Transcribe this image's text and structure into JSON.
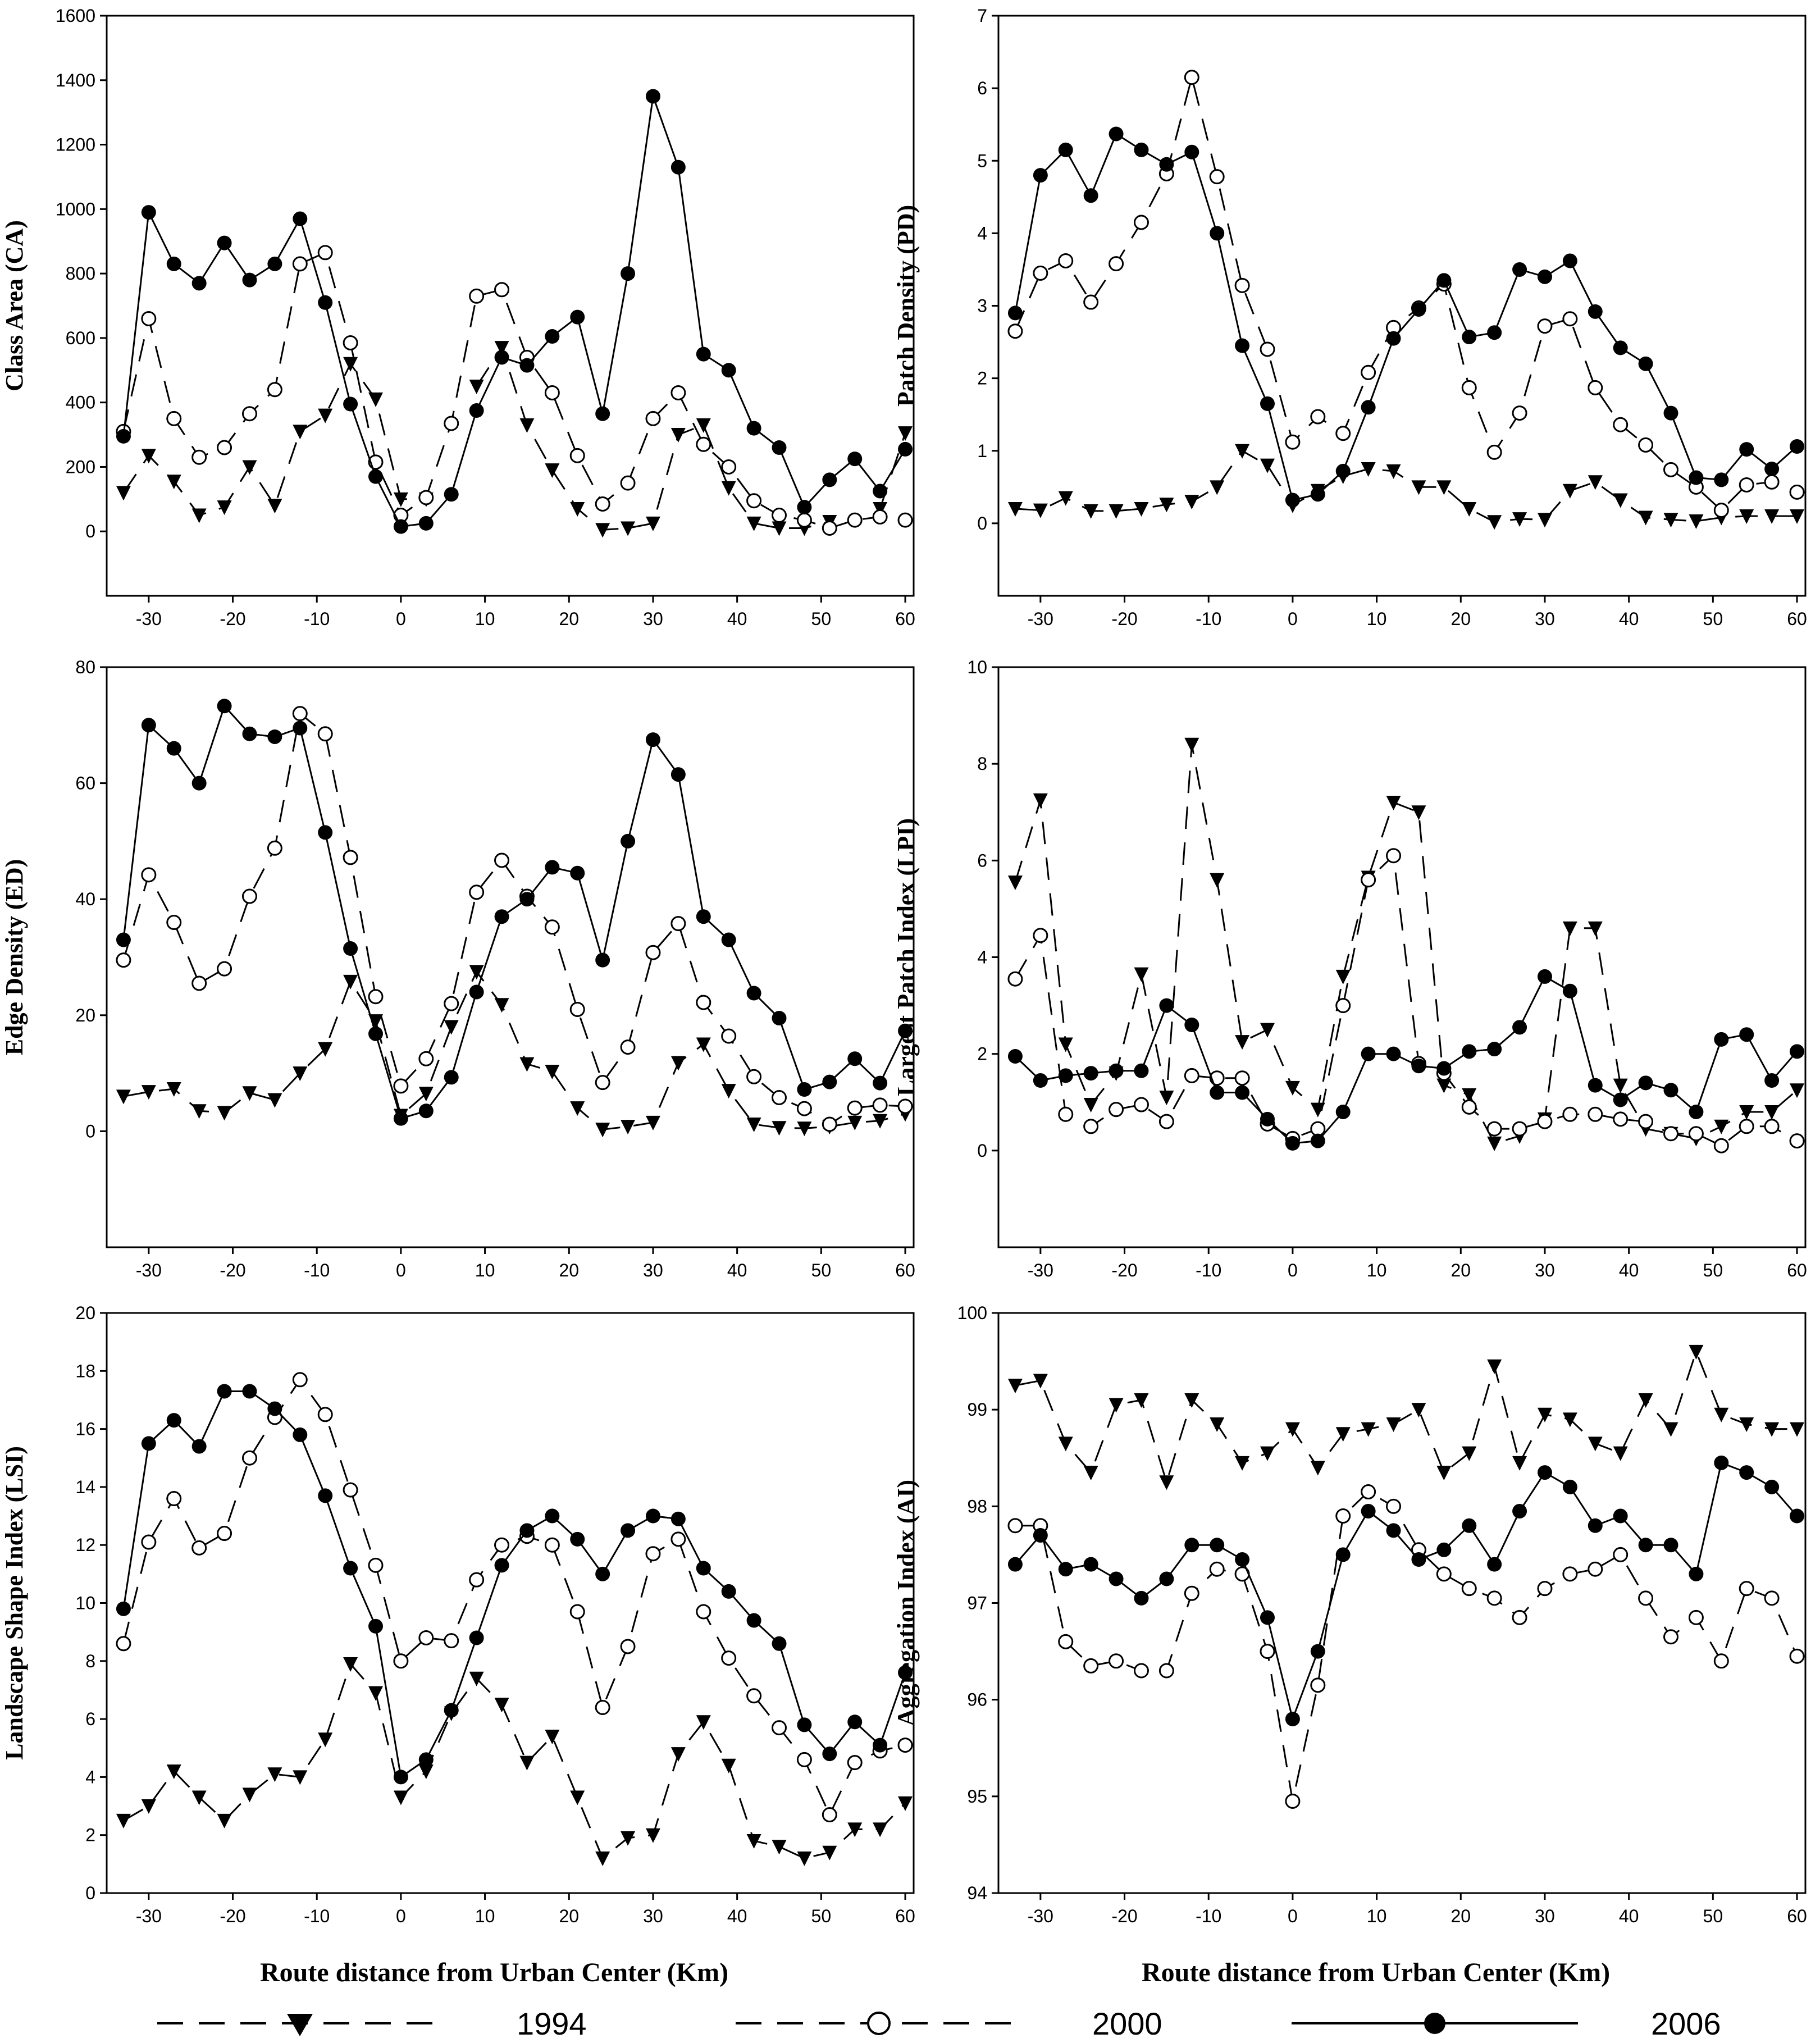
{
  "figure": {
    "x_axis_label": "Route distance from Urban Center (Km)",
    "legend": [
      {
        "key": "y1994",
        "label": "1994",
        "marker": "triangle-down",
        "line": "dashed"
      },
      {
        "key": "y2000",
        "label": "2000",
        "marker": "circle-open",
        "line": "dashed"
      },
      {
        "key": "y2006",
        "label": "2006",
        "marker": "circle-filled",
        "line": "solid"
      }
    ]
  },
  "chart_data": [
    {
      "type": "line",
      "ylabel": "Class Area  (CA)",
      "xlabel": "Route distance from Urban Center (Km)",
      "xlim": [
        -35,
        61
      ],
      "ylim": [
        -200,
        1600
      ],
      "xticks": [
        -30,
        -20,
        -10,
        0,
        10,
        20,
        30,
        40,
        50,
        60
      ],
      "yticks": [
        0,
        200,
        400,
        600,
        800,
        1000,
        1200,
        1400,
        1600
      ],
      "x": [
        -33,
        -30,
        -27,
        -24,
        -21,
        -18,
        -15,
        -12,
        -9,
        -6,
        -3,
        0,
        3,
        6,
        9,
        12,
        15,
        18,
        21,
        24,
        27,
        30,
        33,
        36,
        39,
        42,
        45,
        48,
        51,
        54,
        57,
        60
      ],
      "series": [
        {
          "name": "1994",
          "values": [
            120,
            235,
            155,
            50,
            75,
            200,
            80,
            310,
            360,
            520,
            410,
            100,
            100,
            null,
            450,
            570,
            330,
            190,
            70,
            5,
            10,
            25,
            300,
            330,
            135,
            25,
            10,
            10,
            30,
            null,
            70,
            305
          ]
        },
        {
          "name": "2000",
          "values": [
            310,
            660,
            350,
            230,
            260,
            365,
            440,
            830,
            865,
            585,
            215,
            50,
            105,
            335,
            730,
            750,
            540,
            430,
            235,
            85,
            150,
            350,
            430,
            270,
            200,
            95,
            50,
            35,
            10,
            35,
            45,
            35
          ]
        },
        {
          "name": "2006",
          "values": [
            295,
            990,
            830,
            770,
            895,
            780,
            830,
            970,
            710,
            395,
            170,
            15,
            25,
            115,
            375,
            540,
            515,
            605,
            665,
            365,
            800,
            1350,
            1130,
            550,
            500,
            320,
            260,
            75,
            160,
            225,
            125,
            255
          ]
        }
      ]
    },
    {
      "type": "line",
      "ylabel": "Patch Density  (PD)",
      "xlabel": "Route distance from Urban Center (Km)",
      "xlim": [
        -35,
        61
      ],
      "ylim": [
        -1,
        7
      ],
      "xticks": [
        -30,
        -20,
        -10,
        0,
        10,
        20,
        30,
        40,
        50,
        60
      ],
      "yticks": [
        0,
        1,
        2,
        3,
        4,
        5,
        6,
        7
      ],
      "x": [
        -33,
        -30,
        -27,
        -24,
        -21,
        -18,
        -15,
        -12,
        -9,
        -6,
        -3,
        0,
        3,
        6,
        9,
        12,
        15,
        18,
        21,
        24,
        27,
        30,
        33,
        36,
        39,
        42,
        45,
        48,
        51,
        54,
        57,
        60
      ],
      "series": [
        {
          "name": "1994",
          "values": [
            0.2,
            0.18,
            0.35,
            0.17,
            0.17,
            0.2,
            0.26,
            0.3,
            0.5,
            1.0,
            0.8,
            0.25,
            0.45,
            0.65,
            0.75,
            0.72,
            0.5,
            0.5,
            0.2,
            0.02,
            0.06,
            0.05,
            0.45,
            0.57,
            0.32,
            0.08,
            0.05,
            0.03,
            0.08,
            0.1,
            0.1,
            0.1
          ]
        },
        {
          "name": "2000",
          "values": [
            2.65,
            3.45,
            3.62,
            3.05,
            3.58,
            4.15,
            4.82,
            6.15,
            4.78,
            3.28,
            2.4,
            1.12,
            1.47,
            1.24,
            2.08,
            2.7,
            2.97,
            3.3,
            1.87,
            0.98,
            1.52,
            2.72,
            2.82,
            1.87,
            1.36,
            1.08,
            0.74,
            0.5,
            0.18,
            0.53,
            0.57,
            0.43
          ]
        },
        {
          "name": "2006",
          "values": [
            2.9,
            4.8,
            5.15,
            4.52,
            5.37,
            5.15,
            4.95,
            5.12,
            4.0,
            2.45,
            1.65,
            0.32,
            0.4,
            0.72,
            1.6,
            2.55,
            2.95,
            3.35,
            2.57,
            2.63,
            3.5,
            3.4,
            3.62,
            2.92,
            2.42,
            2.2,
            1.52,
            0.63,
            0.6,
            1.02,
            0.75,
            1.06
          ]
        }
      ]
    },
    {
      "type": "line",
      "ylabel": "Edge Density (ED)",
      "xlabel": "Route distance from Urban Center (Km)",
      "xlim": [
        -35,
        61
      ],
      "ylim": [
        -20,
        80
      ],
      "xticks": [
        -30,
        -20,
        -10,
        0,
        10,
        20,
        30,
        40,
        50,
        60
      ],
      "yticks": [
        0,
        20,
        40,
        60,
        80
      ],
      "x": [
        -33,
        -30,
        -27,
        -24,
        -21,
        -18,
        -15,
        -12,
        -9,
        -6,
        -3,
        0,
        3,
        6,
        9,
        12,
        15,
        18,
        21,
        24,
        27,
        30,
        33,
        36,
        39,
        42,
        45,
        48,
        51,
        54,
        57,
        60
      ],
      "series": [
        {
          "name": "1994",
          "values": [
            6.0,
            6.8,
            7.3,
            3.5,
            3.2,
            6.6,
            5.4,
            10.0,
            14.2,
            25.8,
            19.0,
            2.7,
            6.5,
            18.0,
            27.5,
            21.8,
            11.6,
            10.3,
            4.0,
            0.3,
            0.8,
            1.5,
            11.8,
            15.0,
            7.0,
            1.2,
            0.6,
            0.5,
            0.8,
            1.5,
            1.8,
            3.0
          ]
        },
        {
          "name": "2000",
          "values": [
            29.5,
            44.2,
            36.0,
            25.5,
            28.0,
            40.5,
            48.8,
            72.0,
            68.5,
            47.2,
            23.2,
            7.8,
            12.5,
            22.0,
            41.2,
            46.7,
            40.5,
            35.2,
            21.0,
            8.4,
            14.5,
            30.8,
            35.8,
            22.2,
            16.4,
            9.4,
            5.8,
            3.9,
            1.2,
            4.0,
            4.5,
            4.3
          ]
        },
        {
          "name": "2006",
          "values": [
            33.0,
            70.0,
            66.0,
            60.0,
            73.3,
            68.5,
            68.0,
            69.5,
            51.5,
            31.5,
            16.8,
            2.2,
            3.5,
            9.3,
            24.0,
            37.0,
            40.0,
            45.5,
            44.5,
            29.5,
            50.0,
            67.5,
            61.5,
            37.0,
            33.0,
            23.8,
            19.5,
            7.2,
            8.5,
            12.5,
            8.3,
            17.3
          ]
        }
      ]
    },
    {
      "type": "line",
      "ylabel": "Largest Patch Index  (LPI)",
      "xlabel": "Route distance from Urban Center (Km)",
      "xlim": [
        -35,
        61
      ],
      "ylim": [
        -2,
        10
      ],
      "xticks": [
        -30,
        -20,
        -10,
        0,
        10,
        20,
        30,
        40,
        50,
        60
      ],
      "yticks": [
        0,
        2,
        4,
        6,
        8,
        10
      ],
      "x": [
        -33,
        -30,
        -27,
        -24,
        -21,
        -18,
        -15,
        -12,
        -9,
        -6,
        -3,
        0,
        3,
        6,
        9,
        12,
        15,
        18,
        21,
        24,
        27,
        30,
        33,
        36,
        39,
        42,
        45,
        48,
        51,
        54,
        57,
        60
      ],
      "series": [
        {
          "name": "1994",
          "values": [
            5.55,
            7.25,
            2.2,
            0.95,
            1.6,
            3.65,
            1.1,
            8.4,
            5.6,
            2.25,
            2.5,
            1.3,
            0.85,
            3.6,
            5.65,
            7.2,
            7.0,
            1.35,
            1.15,
            0.15,
            0.3,
            0.65,
            4.6,
            4.6,
            1.35,
            0.45,
            0.35,
            0.25,
            0.5,
            0.8,
            0.8,
            1.25
          ]
        },
        {
          "name": "2000",
          "values": [
            3.55,
            4.45,
            0.75,
            0.5,
            0.85,
            0.95,
            0.6,
            1.55,
            1.5,
            1.5,
            0.55,
            0.25,
            0.45,
            3.0,
            5.6,
            6.1,
            1.8,
            1.6,
            0.9,
            0.45,
            0.45,
            0.6,
            0.75,
            0.75,
            0.65,
            0.6,
            0.35,
            0.35,
            0.1,
            0.5,
            0.5,
            0.2
          ]
        },
        {
          "name": "2006",
          "values": [
            1.95,
            1.45,
            1.55,
            1.6,
            1.65,
            1.65,
            3.0,
            2.6,
            1.2,
            1.2,
            0.65,
            0.15,
            0.2,
            0.8,
            2.0,
            2.0,
            1.75,
            1.7,
            2.05,
            2.1,
            2.55,
            3.6,
            3.3,
            1.35,
            1.05,
            1.4,
            1.25,
            0.8,
            2.3,
            2.4,
            1.45,
            2.05
          ]
        }
      ]
    },
    {
      "type": "line",
      "ylabel": "Landscape Shape Index (LSI)",
      "xlabel": "Route distance from Urban Center (Km)",
      "xlim": [
        -35,
        61
      ],
      "ylim": [
        0,
        20
      ],
      "xticks": [
        -30,
        -20,
        -10,
        0,
        10,
        20,
        30,
        40,
        50,
        60
      ],
      "yticks": [
        0,
        2,
        4,
        6,
        8,
        10,
        12,
        14,
        16,
        18,
        20
      ],
      "x": [
        -33,
        -30,
        -27,
        -24,
        -21,
        -18,
        -15,
        -12,
        -9,
        -6,
        -3,
        0,
        3,
        6,
        9,
        12,
        15,
        18,
        21,
        24,
        27,
        30,
        33,
        36,
        39,
        42,
        45,
        48,
        51,
        54,
        57,
        60
      ],
      "series": [
        {
          "name": "1994",
          "values": [
            2.5,
            3.0,
            4.2,
            3.3,
            2.5,
            3.4,
            4.1,
            4.0,
            5.3,
            7.9,
            6.9,
            3.3,
            4.2,
            6.2,
            7.4,
            6.5,
            4.5,
            5.4,
            3.3,
            1.2,
            1.9,
            2.0,
            4.8,
            5.9,
            4.4,
            1.8,
            1.6,
            1.2,
            1.4,
            2.2,
            2.2,
            3.1
          ]
        },
        {
          "name": "2000",
          "values": [
            8.6,
            12.1,
            13.6,
            11.9,
            12.4,
            15.0,
            16.4,
            17.7,
            16.5,
            13.9,
            11.3,
            8.0,
            8.8,
            8.7,
            10.8,
            12.0,
            12.3,
            12.0,
            9.7,
            6.4,
            8.5,
            11.7,
            12.2,
            9.7,
            8.1,
            6.8,
            5.7,
            4.6,
            2.7,
            4.5,
            4.9,
            5.1
          ]
        },
        {
          "name": "2006",
          "values": [
            9.8,
            15.5,
            16.3,
            15.4,
            17.3,
            17.3,
            16.7,
            15.8,
            13.7,
            11.2,
            9.2,
            4.0,
            4.6,
            6.3,
            8.8,
            11.3,
            12.5,
            13.0,
            12.2,
            11.0,
            12.5,
            13.0,
            12.9,
            11.2,
            10.4,
            9.4,
            8.6,
            5.8,
            4.8,
            5.9,
            5.1,
            7.6
          ]
        }
      ]
    },
    {
      "type": "line",
      "ylabel": "Aggregation Index (AI)",
      "xlabel": "Route distance from Urban Center (Km)",
      "xlim": [
        -35,
        61
      ],
      "ylim": [
        94,
        100
      ],
      "xticks": [
        -30,
        -20,
        -10,
        0,
        10,
        20,
        30,
        40,
        50,
        60
      ],
      "yticks": [
        94,
        95,
        96,
        97,
        98,
        99,
        100
      ],
      "x": [
        -33,
        -30,
        -27,
        -24,
        -21,
        -18,
        -15,
        -12,
        -9,
        -6,
        -3,
        0,
        3,
        6,
        9,
        12,
        15,
        18,
        21,
        24,
        27,
        30,
        33,
        36,
        39,
        42,
        45,
        48,
        51,
        54,
        57,
        60
      ],
      "series": [
        {
          "name": "1994",
          "values": [
            99.25,
            99.3,
            98.65,
            98.35,
            99.05,
            99.1,
            98.25,
            99.1,
            98.85,
            98.45,
            98.55,
            98.8,
            98.4,
            98.75,
            98.8,
            98.85,
            99.0,
            98.35,
            98.55,
            99.45,
            98.45,
            98.95,
            98.9,
            98.65,
            98.55,
            99.1,
            98.8,
            99.6,
            98.95,
            98.85,
            98.8,
            98.8
          ]
        },
        {
          "name": "2000",
          "values": [
            97.8,
            97.8,
            96.6,
            96.35,
            96.4,
            96.3,
            96.3,
            97.1,
            97.35,
            97.3,
            96.5,
            94.95,
            96.15,
            97.9,
            98.15,
            98.0,
            97.55,
            97.3,
            97.15,
            97.05,
            96.85,
            97.15,
            97.3,
            97.35,
            97.5,
            97.05,
            96.65,
            96.85,
            96.4,
            97.15,
            97.05,
            96.45
          ]
        },
        {
          "name": "2006",
          "values": [
            97.4,
            97.7,
            97.35,
            97.4,
            97.25,
            97.05,
            97.25,
            97.6,
            97.6,
            97.45,
            96.85,
            95.8,
            96.5,
            97.5,
            97.95,
            97.75,
            97.45,
            97.55,
            97.8,
            97.4,
            97.95,
            98.35,
            98.2,
            97.8,
            97.9,
            97.6,
            97.6,
            97.3,
            98.45,
            98.35,
            98.2,
            97.9
          ]
        }
      ]
    }
  ]
}
